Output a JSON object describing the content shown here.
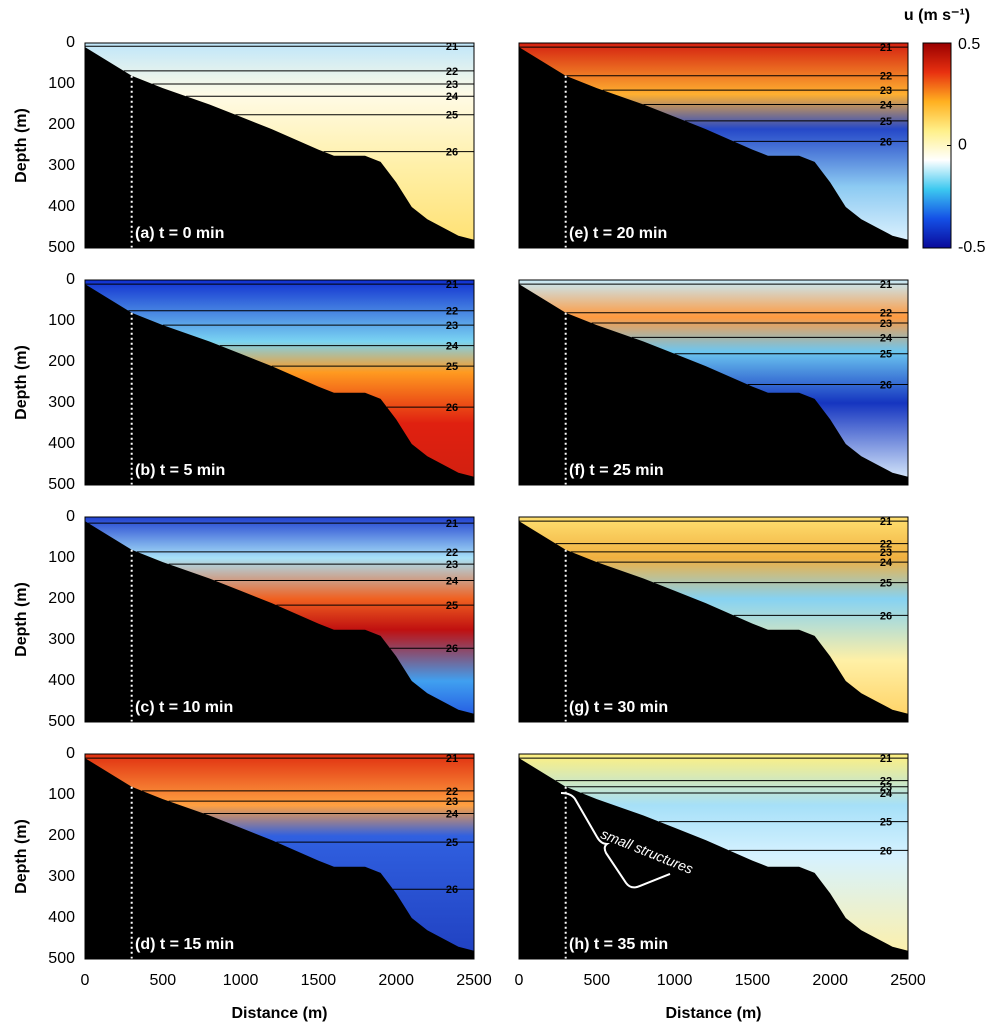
{
  "chart_data": [
    {
      "type": "field",
      "label": "(a) t = 0 min",
      "xlim": [
        0,
        2500
      ],
      "ylim": [
        500,
        0
      ],
      "yticks": [
        0,
        100,
        200,
        300,
        400,
        500
      ],
      "ylabel": "Depth (m)",
      "contour_levels": [
        21,
        22,
        23,
        24,
        25,
        26
      ],
      "contour_depths": [
        8,
        68,
        100,
        130,
        175,
        265
      ]
    },
    {
      "type": "field",
      "label": "(e) t = 20 min",
      "xlim": [
        0,
        2500
      ],
      "ylim": [
        500,
        0
      ],
      "contour_levels": [
        21,
        22,
        23,
        24,
        25,
        26
      ],
      "contour_depths": [
        10,
        80,
        115,
        150,
        190,
        240
      ]
    },
    {
      "type": "field",
      "label": "(b) t = 5 min",
      "xlim": [
        0,
        2500
      ],
      "ylim": [
        500,
        0
      ],
      "yticks": [
        0,
        100,
        200,
        300,
        400,
        500
      ],
      "ylabel": "Depth (m)",
      "contour_levels": [
        21,
        22,
        23,
        24,
        25,
        26
      ],
      "contour_depths": [
        10,
        75,
        110,
        160,
        210,
        310
      ]
    },
    {
      "type": "field",
      "label": "(f) t = 25 min",
      "xlim": [
        0,
        2500
      ],
      "ylim": [
        500,
        0
      ],
      "contour_levels": [
        21,
        22,
        23,
        24,
        25,
        26
      ],
      "contour_depths": [
        10,
        80,
        105,
        140,
        180,
        255
      ]
    },
    {
      "type": "field",
      "label": "(c) t = 10 min",
      "xlim": [
        0,
        2500
      ],
      "ylim": [
        500,
        0
      ],
      "yticks": [
        0,
        100,
        200,
        300,
        400,
        500
      ],
      "ylabel": "Depth (m)",
      "contour_levels": [
        21,
        22,
        23,
        24,
        25,
        26
      ],
      "contour_depths": [
        15,
        85,
        115,
        155,
        215,
        320
      ]
    },
    {
      "type": "field",
      "label": "(g) t = 30 min",
      "xlim": [
        0,
        2500
      ],
      "ylim": [
        500,
        0
      ],
      "contour_levels": [
        21,
        22,
        23,
        24,
        25,
        26
      ],
      "contour_depths": [
        10,
        65,
        85,
        110,
        160,
        240
      ]
    },
    {
      "type": "field",
      "label": "(d) t = 15 min",
      "xlim": [
        0,
        2500
      ],
      "ylim": [
        500,
        0
      ],
      "xticks": [
        0,
        500,
        1000,
        1500,
        2000,
        2500
      ],
      "yticks": [
        0,
        100,
        200,
        300,
        400,
        500
      ],
      "xlabel": "Distance (m)",
      "ylabel": "Depth (m)",
      "contour_levels": [
        21,
        22,
        23,
        24,
        25,
        26
      ],
      "contour_depths": [
        10,
        90,
        115,
        145,
        215,
        330
      ]
    },
    {
      "type": "field",
      "label": "(h) t = 35 min",
      "xlim": [
        0,
        2500
      ],
      "ylim": [
        500,
        0
      ],
      "xticks": [
        0,
        500,
        1000,
        1500,
        2000,
        2500
      ],
      "xlabel": "Distance (m)",
      "annotation": "small structures",
      "contour_levels": [
        21,
        22,
        23,
        24,
        25,
        26
      ],
      "contour_depths": [
        10,
        65,
        80,
        95,
        165,
        235
      ]
    }
  ],
  "bathymetry": {
    "x": [
      0,
      300,
      500,
      800,
      1000,
      1200,
      1500,
      1600,
      1800,
      1900,
      2000,
      2100,
      2200,
      2300,
      2400,
      2500
    ],
    "depth": [
      10,
      80,
      110,
      150,
      180,
      210,
      260,
      275,
      275,
      290,
      340,
      400,
      430,
      450,
      470,
      480
    ]
  },
  "reference_x": 300,
  "colorbar": {
    "label": "u (m s⁻¹)",
    "clim": [
      -0.5,
      0.5
    ],
    "ticks": [
      -0.5,
      0,
      0.5
    ],
    "colors": [
      "#0a0a9a",
      "#1450e6",
      "#3cc8f0",
      "#ffffff",
      "#fff08a",
      "#ffb020",
      "#e83010",
      "#9a0000"
    ]
  }
}
